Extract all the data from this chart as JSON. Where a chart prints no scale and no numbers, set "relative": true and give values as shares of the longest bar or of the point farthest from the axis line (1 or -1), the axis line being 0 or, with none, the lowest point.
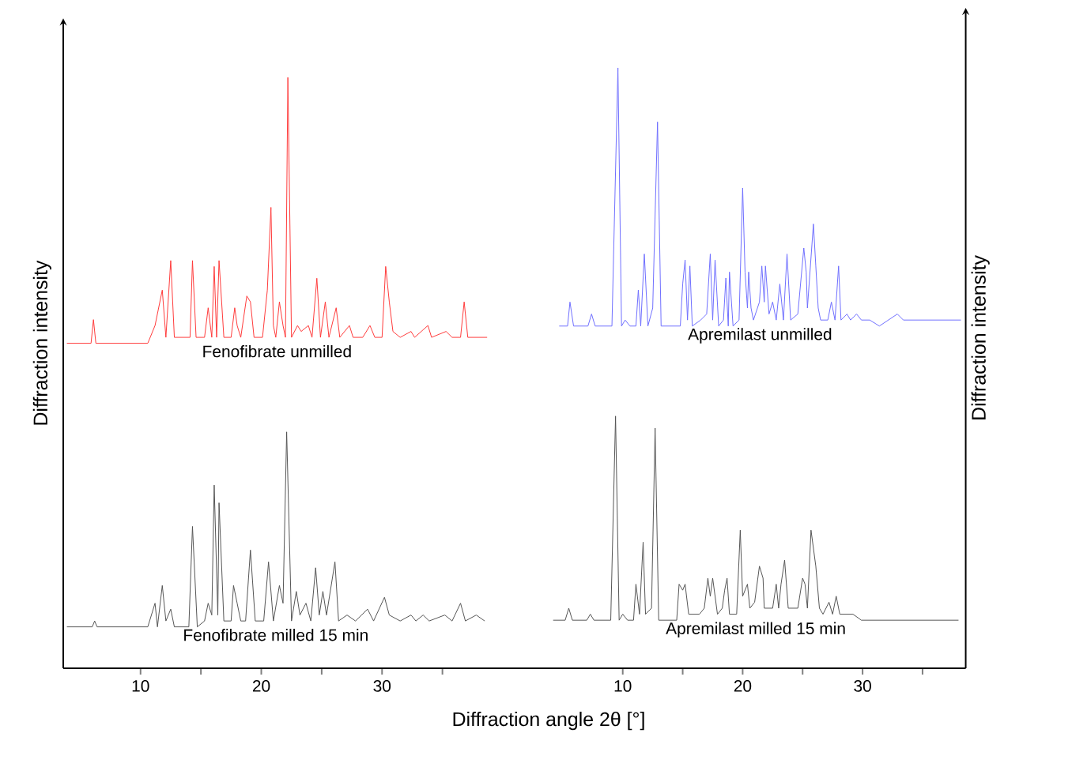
{
  "chart_data": [
    {
      "type": "line",
      "relative": true,
      "xlabel": "Diffraction angle 2θ [°]",
      "ylabel": "Diffraction intensity",
      "xlim": [
        3.6,
        40
      ],
      "xticks": [
        10,
        {
          "value": 15,
          "label": null
        },
        20,
        {
          "value": 25,
          "label": null
        },
        30,
        {
          "value": 35,
          "label": null
        }
      ],
      "series": [
        {
          "name": "Fenofibrate unmilled",
          "color": "#ff3b3b",
          "x": [
            3.9,
            5.9,
            6.1,
            6.3,
            10.6,
            11.2,
            11.8,
            12.1,
            12.5,
            12.8,
            14.1,
            14.3,
            14.6,
            15.3,
            15.6,
            15.9,
            16.1,
            16.3,
            16.5,
            16.9,
            17.5,
            17.8,
            18.0,
            18.3,
            18.8,
            19.1,
            19.4,
            20.1,
            20.5,
            20.8,
            21.0,
            21.2,
            21.5,
            21.8,
            22.0,
            22.2,
            22.5,
            23.0,
            23.3,
            23.9,
            24.2,
            24.6,
            24.9,
            25.3,
            25.6,
            26.2,
            26.5,
            27.3,
            27.6,
            28.4,
            29.0,
            29.4,
            30.0,
            30.3,
            30.6,
            30.9,
            31.5,
            32.4,
            32.7,
            33.8,
            34.1,
            35.3,
            35.8,
            36.5,
            36.8,
            37.1,
            38.0,
            38.7
          ],
          "values": [
            0.55,
            0.55,
            0.59,
            0.55,
            0.55,
            0.58,
            0.64,
            0.56,
            0.69,
            0.56,
            0.56,
            0.69,
            0.56,
            0.56,
            0.61,
            0.56,
            0.68,
            0.56,
            0.69,
            0.56,
            0.56,
            0.61,
            0.58,
            0.56,
            0.63,
            0.62,
            0.56,
            0.56,
            0.64,
            0.78,
            0.58,
            0.56,
            0.62,
            0.58,
            0.56,
            1,
            0.56,
            0.58,
            0.57,
            0.58,
            0.56,
            0.66,
            0.56,
            0.62,
            0.56,
            0.61,
            0.56,
            0.58,
            0.56,
            0.56,
            0.58,
            0.56,
            0.56,
            0.68,
            0.62,
            0.57,
            0.56,
            0.57,
            0.56,
            0.58,
            0.56,
            0.57,
            0.56,
            0.56,
            0.62,
            0.56,
            0.56,
            0.56
          ]
        },
        {
          "name": "Fenofibrate milled 15 min",
          "color": "#555555",
          "x": [
            3.9,
            6.0,
            6.2,
            6.4,
            10.6,
            11.2,
            11.4,
            11.8,
            12.1,
            12.5,
            12.8,
            14.0,
            14.3,
            14.7,
            15.3,
            15.6,
            15.9,
            16.1,
            16.4,
            16.5,
            16.9,
            17.5,
            17.7,
            18.0,
            18.3,
            18.7,
            19.1,
            19.5,
            20.2,
            20.6,
            21.0,
            21.5,
            21.8,
            22.1,
            22.5,
            22.9,
            23.2,
            23.7,
            24.1,
            24.5,
            24.8,
            25.1,
            25.4,
            26.1,
            26.4,
            27.1,
            27.8,
            28.8,
            29.3,
            30.2,
            30.6,
            31.5,
            32.4,
            32.8,
            33.4,
            33.9,
            35.2,
            35.8,
            36.5,
            36.9,
            37.8,
            38.5
          ],
          "values": [
            0.07,
            0.07,
            0.08,
            0.07,
            0.07,
            0.11,
            0.07,
            0.14,
            0.08,
            0.1,
            0.07,
            0.07,
            0.24,
            0.07,
            0.08,
            0.11,
            0.09,
            0.31,
            0.09,
            0.28,
            0.08,
            0.08,
            0.14,
            0.11,
            0.08,
            0.08,
            0.2,
            0.08,
            0.08,
            0.18,
            0.08,
            0.14,
            0.11,
            0.4,
            0.08,
            0.13,
            0.09,
            0.11,
            0.08,
            0.17,
            0.09,
            0.13,
            0.09,
            0.18,
            0.08,
            0.09,
            0.08,
            0.1,
            0.08,
            0.12,
            0.09,
            0.08,
            0.09,
            0.08,
            0.09,
            0.08,
            0.09,
            0.08,
            0.11,
            0.08,
            0.09,
            0.08
          ]
        }
      ]
    },
    {
      "type": "line",
      "relative": true,
      "ylabel": "Diffraction intensity",
      "xlim": [
        -5.7,
        38.6
      ],
      "xticks": [
        10,
        {
          "value": 15,
          "label": null
        },
        20,
        {
          "value": 25,
          "label": null
        },
        30,
        {
          "value": 35,
          "label": null
        }
      ],
      "series": [
        {
          "name": "Apremilast unmilled",
          "color": "#6f6fff",
          "x": [
            4.7,
            5.4,
            5.6,
            5.9,
            7.1,
            7.4,
            7.7,
            9.1,
            9.6,
            9.9,
            10.2,
            10.6,
            11.1,
            11.3,
            11.5,
            11.8,
            12.1,
            12.5,
            12.9,
            13.2,
            14.8,
            15.0,
            15.2,
            15.4,
            15.6,
            15.8,
            16.5,
            17.0,
            17.3,
            17.5,
            17.7,
            18.0,
            18.4,
            18.6,
            18.8,
            18.9,
            19.2,
            19.7,
            20.0,
            20.2,
            20.4,
            20.5,
            20.7,
            20.9,
            21.4,
            21.6,
            21.8,
            21.9,
            22.2,
            22.5,
            22.8,
            23.1,
            23.4,
            23.7,
            24.0,
            24.6,
            25.1,
            25.3,
            25.4,
            25.9,
            26.1,
            26.3,
            26.5,
            27.1,
            27.4,
            27.7,
            28.0,
            28.2,
            28.7,
            29.0,
            29.5,
            29.9,
            30.6,
            31.4,
            32.9,
            33.4,
            34.5,
            35.2,
            35.8,
            36.5,
            37.1,
            37.8,
            38.2
          ],
          "values": [
            0.57,
            0.57,
            0.61,
            0.57,
            0.57,
            0.59,
            0.57,
            0.57,
            1,
            0.57,
            0.58,
            0.57,
            0.57,
            0.63,
            0.57,
            0.69,
            0.57,
            0.6,
            0.91,
            0.57,
            0.57,
            0.64,
            0.68,
            0.58,
            0.67,
            0.57,
            0.58,
            0.59,
            0.69,
            0.58,
            0.68,
            0.57,
            0.58,
            0.65,
            0.57,
            0.66,
            0.57,
            0.58,
            0.8,
            0.66,
            0.6,
            0.66,
            0.6,
            0.58,
            0.61,
            0.67,
            0.61,
            0.67,
            0.59,
            0.61,
            0.58,
            0.64,
            0.58,
            0.69,
            0.58,
            0.59,
            0.7,
            0.66,
            0.6,
            0.74,
            0.67,
            0.6,
            0.58,
            0.58,
            0.61,
            0.58,
            0.67,
            0.58,
            0.59,
            0.58,
            0.59,
            0.58,
            0.58,
            0.57,
            0.59,
            0.58,
            0.58,
            0.58,
            0.58,
            0.58,
            0.58,
            0.58,
            0.58
          ]
        },
        {
          "name": "Apremilast milled 15 min",
          "color": "#555555",
          "x": [
            4.2,
            5.2,
            5.5,
            5.8,
            7.0,
            7.3,
            7.6,
            9.0,
            9.4,
            9.7,
            10.0,
            10.4,
            10.9,
            11.1,
            11.4,
            11.7,
            11.9,
            12.4,
            12.7,
            13.0,
            14.5,
            14.7,
            15.0,
            15.2,
            15.5,
            16.4,
            16.8,
            17.1,
            17.3,
            17.5,
            17.9,
            18.3,
            18.5,
            18.7,
            18.9,
            19.5,
            19.8,
            20.0,
            20.4,
            20.6,
            21.0,
            21.4,
            21.7,
            21.8,
            22.1,
            22.5,
            22.8,
            23.0,
            23.2,
            23.5,
            23.8,
            24.2,
            24.6,
            25.0,
            25.2,
            25.4,
            25.7,
            26.1,
            26.4,
            26.7,
            27.2,
            27.5,
            27.8,
            28.1,
            28.7,
            29.2,
            29.9,
            30.6,
            31.4,
            32.8,
            33.4,
            34.5,
            35.8,
            36.7,
            37.6,
            38.0
          ],
          "values": [
            0.08,
            0.08,
            0.1,
            0.08,
            0.08,
            0.09,
            0.08,
            0.08,
            0.42,
            0.08,
            0.09,
            0.08,
            0.08,
            0.14,
            0.09,
            0.21,
            0.09,
            0.1,
            0.4,
            0.08,
            0.08,
            0.14,
            0.13,
            0.14,
            0.09,
            0.09,
            0.1,
            0.15,
            0.12,
            0.15,
            0.09,
            0.1,
            0.13,
            0.15,
            0.09,
            0.09,
            0.23,
            0.12,
            0.14,
            0.1,
            0.11,
            0.17,
            0.15,
            0.1,
            0.1,
            0.1,
            0.14,
            0.1,
            0.14,
            0.18,
            0.1,
            0.1,
            0.1,
            0.15,
            0.14,
            0.1,
            0.23,
            0.17,
            0.1,
            0.09,
            0.11,
            0.09,
            0.12,
            0.09,
            0.09,
            0.09,
            0.08,
            0.08,
            0.08,
            0.08,
            0.08,
            0.08,
            0.08,
            0.08,
            0.08,
            0.08
          ]
        }
      ]
    }
  ]
}
